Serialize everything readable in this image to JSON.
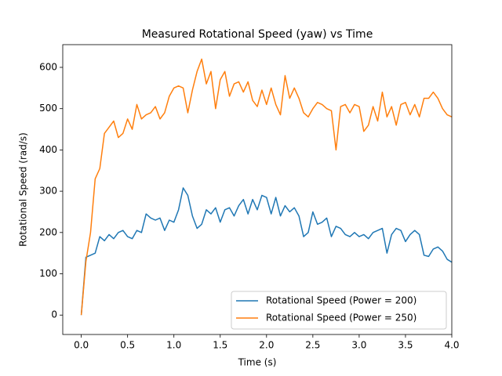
{
  "chart_data": {
    "type": "line",
    "title": "Measured Rotational Speed (yaw) vs Time",
    "x_label": "Time (s)",
    "y_label": "Rotational Speed (rad/s)",
    "x": [
      0,
      0.05,
      0.1,
      0.15,
      0.2,
      0.25,
      0.3,
      0.35,
      0.4,
      0.45,
      0.5,
      0.55,
      0.6,
      0.65,
      0.7,
      0.75,
      0.8,
      0.85,
      0.9,
      0.95,
      1.0,
      1.05,
      1.1,
      1.15,
      1.2,
      1.25,
      1.3,
      1.35,
      1.4,
      1.45,
      1.5,
      1.55,
      1.6,
      1.65,
      1.7,
      1.75,
      1.8,
      1.85,
      1.9,
      1.95,
      2.0,
      2.05,
      2.1,
      2.15,
      2.2,
      2.25,
      2.3,
      2.35,
      2.4,
      2.45,
      2.5,
      2.55,
      2.6,
      2.65,
      2.7,
      2.75,
      2.8,
      2.85,
      2.9,
      2.95,
      3.0,
      3.05,
      3.1,
      3.15,
      3.2,
      3.25,
      3.3,
      3.35,
      3.4,
      3.45,
      3.5,
      3.55,
      3.6,
      3.65,
      3.7,
      3.75,
      3.8,
      3.85,
      3.9,
      3.95,
      4.0
    ],
    "series": [
      {
        "name": "Rotational Speed (Power = 200)",
        "color": "#1f77b4",
        "values": [
          0,
          140,
          145,
          150,
          190,
          180,
          195,
          185,
          200,
          205,
          190,
          185,
          205,
          200,
          245,
          235,
          230,
          235,
          205,
          230,
          225,
          255,
          308,
          290,
          240,
          210,
          220,
          255,
          245,
          260,
          225,
          255,
          260,
          240,
          265,
          280,
          245,
          280,
          255,
          290,
          285,
          245,
          285,
          240,
          265,
          250,
          260,
          240,
          190,
          200,
          250,
          220,
          225,
          235,
          190,
          215,
          210,
          195,
          190,
          200,
          190,
          195,
          185,
          200,
          205,
          210,
          150,
          195,
          210,
          205,
          178,
          195,
          205,
          195,
          145,
          142,
          160,
          165,
          155,
          135,
          128
        ]
      },
      {
        "name": "Rotational Speed (Power = 250)",
        "color": "#ff7f0e",
        "values": [
          0,
          130,
          200,
          330,
          355,
          440,
          455,
          470,
          430,
          440,
          475,
          450,
          510,
          475,
          485,
          490,
          505,
          475,
          490,
          530,
          550,
          555,
          550,
          490,
          545,
          590,
          620,
          560,
          590,
          500,
          570,
          590,
          530,
          560,
          565,
          540,
          565,
          520,
          505,
          545,
          510,
          550,
          510,
          485,
          580,
          525,
          550,
          525,
          490,
          480,
          500,
          515,
          510,
          500,
          495,
          400,
          505,
          510,
          490,
          510,
          505,
          445,
          460,
          505,
          470,
          540,
          480,
          505,
          460,
          510,
          515,
          485,
          510,
          480,
          525,
          525,
          540,
          525,
          500,
          485,
          480
        ]
      }
    ],
    "xlim": [
      -0.2,
      4.0
    ],
    "xticks": [
      {
        "value": 0,
        "label": "0.0"
      },
      0.5,
      {
        "value": 1,
        "label": "1.0"
      },
      1.5,
      {
        "value": 2,
        "label": "2.0"
      },
      2.5,
      {
        "value": 3,
        "label": "3.0"
      },
      3.5,
      {
        "value": 4,
        "label": "4.0"
      }
    ],
    "ylim": [
      -47,
      655
    ],
    "yticks": [
      0,
      100,
      200,
      300,
      400,
      500,
      600
    ],
    "grid": false,
    "legend": "lower right"
  }
}
